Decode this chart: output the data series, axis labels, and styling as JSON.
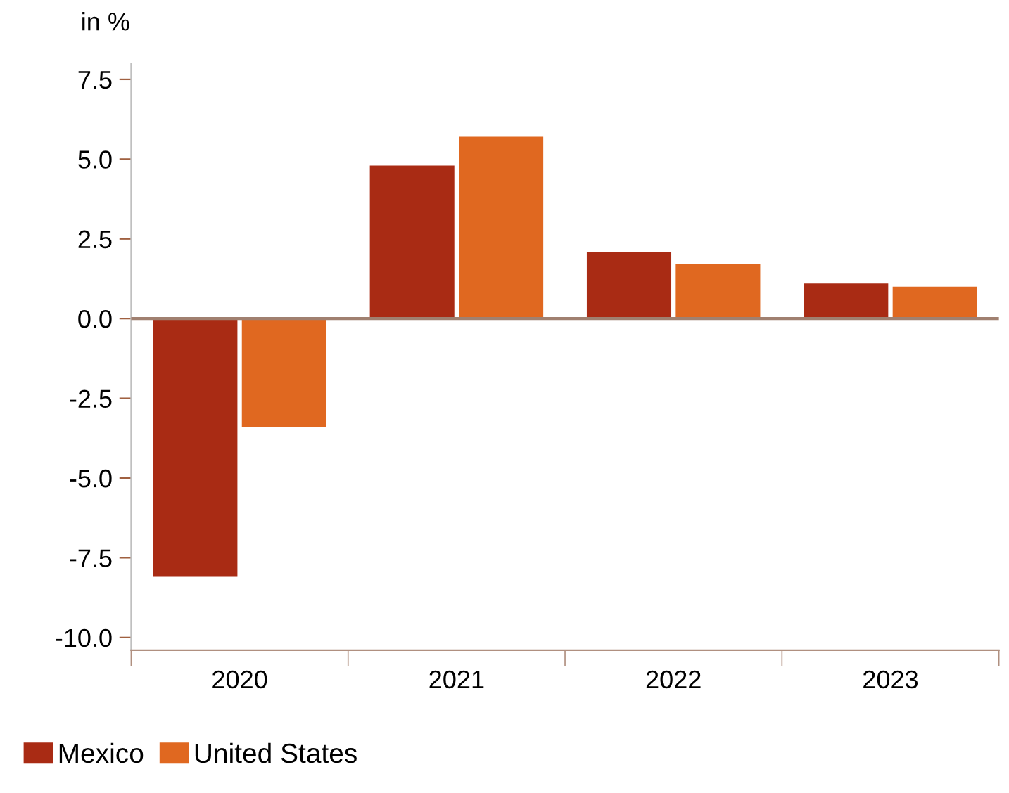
{
  "chart_data": {
    "type": "bar",
    "ylabel": "in %",
    "categories": [
      "2020",
      "2021",
      "2022",
      "2023"
    ],
    "series": [
      {
        "name": "Mexico",
        "color": "#a92b14",
        "values": [
          -8.1,
          4.8,
          2.1,
          1.1
        ]
      },
      {
        "name": "United States",
        "color": "#e06820",
        "values": [
          -3.4,
          5.7,
          1.7,
          1.0
        ]
      }
    ],
    "ylim": [
      -10.4,
      8.0
    ],
    "yticks": [
      {
        "value": -10,
        "label": "-10.0"
      },
      -7.5,
      {
        "value": -5,
        "label": "-5.0"
      },
      -2.5,
      {
        "value": 0,
        "label": "0.0"
      },
      2.5,
      {
        "value": 5,
        "label": "5.0"
      },
      7.5
    ],
    "grid": false,
    "legend": "bottom left",
    "ref_lines": [
      {
        "axis": "y",
        "value": 0,
        "color": "#a08070"
      }
    ]
  }
}
